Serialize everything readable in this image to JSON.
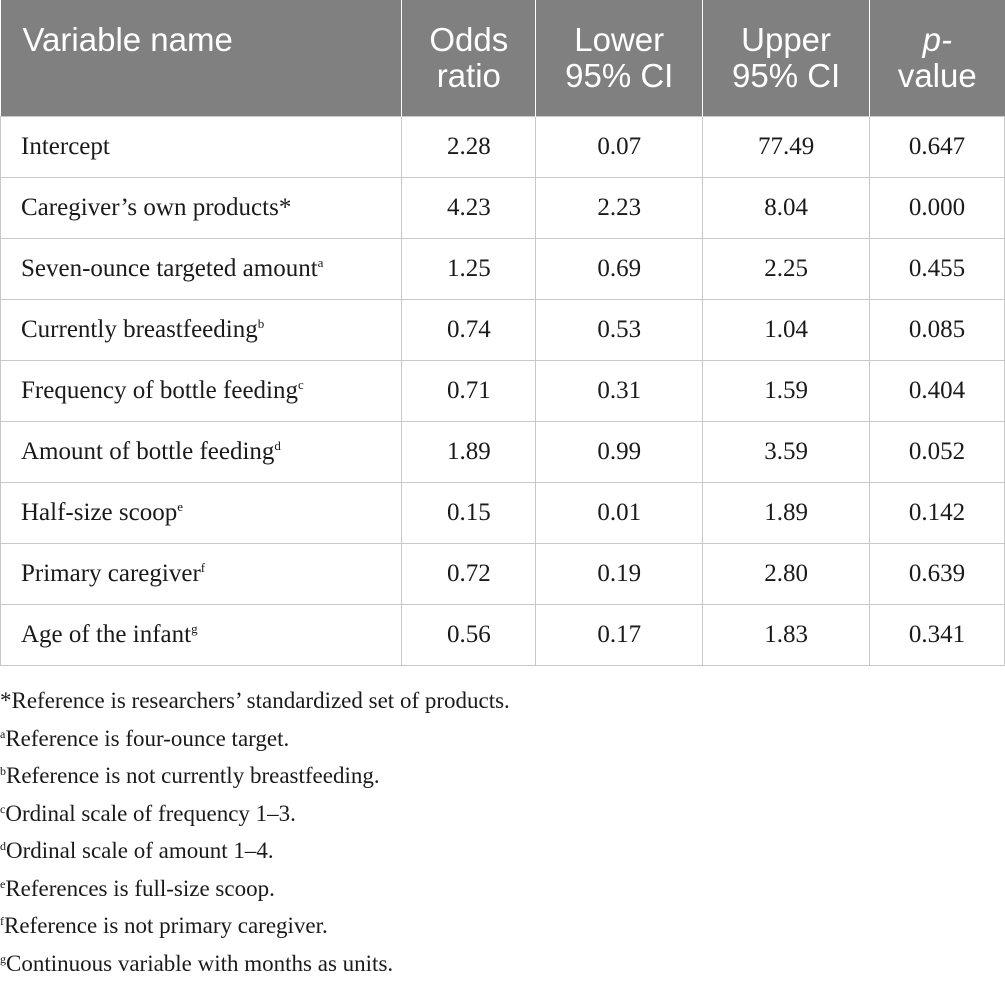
{
  "table": {
    "headers": [
      {
        "line1": "Variable name",
        "line2": ""
      },
      {
        "line1": "Odds",
        "line2": "ratio"
      },
      {
        "line1": "Lower",
        "line2": "95% CI"
      },
      {
        "line1": "Upper",
        "line2": "95% CI"
      },
      {
        "line1": "p-",
        "line2": "value"
      }
    ],
    "rows": [
      {
        "name": "Intercept",
        "sup": "",
        "odds": "2.28",
        "lower": "0.07",
        "upper": "77.49",
        "p": "0.647"
      },
      {
        "name": "Caregiver’s own products*",
        "sup": "",
        "odds": "4.23",
        "lower": "2.23",
        "upper": "8.04",
        "p": "0.000"
      },
      {
        "name": "Seven-ounce targeted amount",
        "sup": "a",
        "odds": "1.25",
        "lower": "0.69",
        "upper": "2.25",
        "p": "0.455"
      },
      {
        "name": "Currently breastfeeding",
        "sup": "b",
        "odds": "0.74",
        "lower": "0.53",
        "upper": "1.04",
        "p": "0.085"
      },
      {
        "name": "Frequency of bottle feeding",
        "sup": "c",
        "odds": "0.71",
        "lower": "0.31",
        "upper": "1.59",
        "p": "0.404"
      },
      {
        "name": "Amount of bottle feeding",
        "sup": "d",
        "odds": "1.89",
        "lower": "0.99",
        "upper": "3.59",
        "p": "0.052"
      },
      {
        "name": "Half-size scoop",
        "sup": "e",
        "odds": "0.15",
        "lower": "0.01",
        "upper": "1.89",
        "p": "0.142"
      },
      {
        "name": "Primary caregiver",
        "sup": "f",
        "odds": "0.72",
        "lower": "0.19",
        "upper": "2.80",
        "p": "0.639"
      },
      {
        "name": "Age of the infant",
        "sup": "g",
        "odds": "0.56",
        "lower": "0.17",
        "upper": "1.83",
        "p": "0.341"
      }
    ]
  },
  "notes": [
    {
      "mark": "",
      "text": "*Reference is researchers’ standardized set of products."
    },
    {
      "mark": "a",
      "text": "Reference is four-ounce target."
    },
    {
      "mark": "b",
      "text": "Reference is not currently breastfeeding."
    },
    {
      "mark": "c",
      "text": "Ordinal scale of frequency 1–3."
    },
    {
      "mark": "d",
      "text": "Ordinal scale of amount 1–4."
    },
    {
      "mark": "e",
      "text": "References is full-size scoop."
    },
    {
      "mark": "f",
      "text": "Reference is not primary caregiver."
    },
    {
      "mark": "g",
      "text": "Continuous variable with months as units."
    }
  ]
}
